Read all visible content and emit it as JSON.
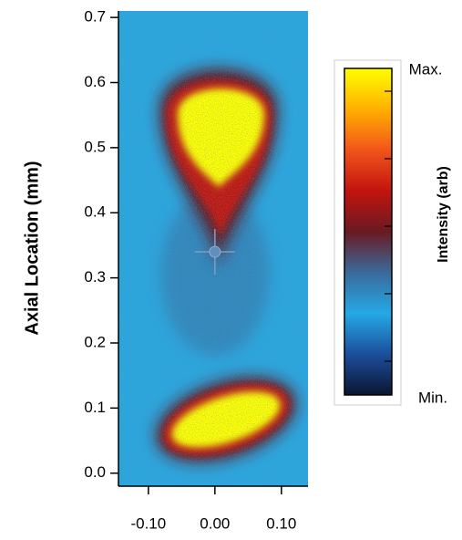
{
  "chart_data": {
    "type": "heatmap",
    "y_label": "Axial Location (mm)",
    "xlim": [
      -0.145,
      0.14
    ],
    "ylim": [
      -0.02,
      0.71
    ],
    "xticks": [
      {
        "value": -0.1,
        "label": "-0.10"
      },
      {
        "value": 0,
        "label": "0.00"
      },
      {
        "value": 0.1,
        "label": "0.10"
      }
    ],
    "yticks": [
      {
        "value": 0,
        "label": "0.0"
      },
      {
        "value": 0.1,
        "label": "0.1"
      },
      {
        "value": 0.2,
        "label": "0.2"
      },
      {
        "value": 0.3,
        "label": "0.3"
      },
      {
        "value": 0.4,
        "label": "0.4"
      },
      {
        "value": 0.5,
        "label": "0.5"
      },
      {
        "value": 0.6,
        "label": "0.6"
      },
      {
        "value": 0.7,
        "label": "0.7"
      }
    ],
    "marker": {
      "x": 0,
      "y": 0.34
    },
    "colorbar": {
      "label": "Intensity (arb)",
      "max_label": "Max.",
      "min_label": "Min.",
      "colormap": [
        "#0a1530",
        "#1b4f9c",
        "#25a9e6",
        "#3a6a9a",
        "#6a1a22",
        "#c2140f",
        "#f2551a",
        "#ffb000",
        "#ffff00"
      ]
    }
  }
}
